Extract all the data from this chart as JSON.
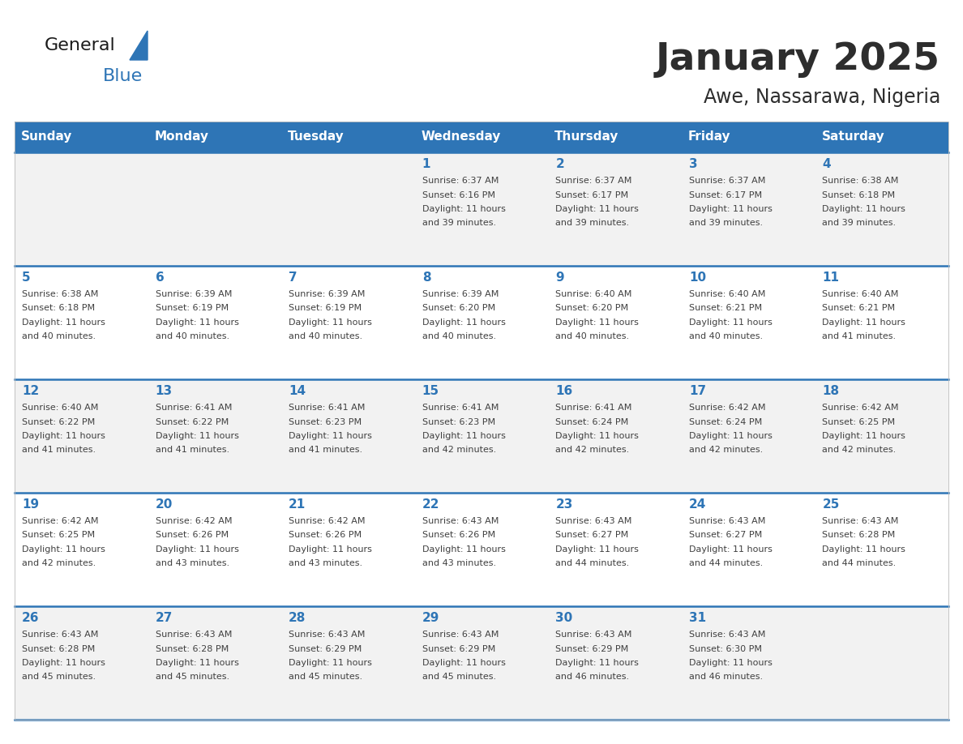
{
  "title": "January 2025",
  "subtitle": "Awe, Nassarawa, Nigeria",
  "header_bg_color": "#2E75B6",
  "header_text_color": "#FFFFFF",
  "day_names": [
    "Sunday",
    "Monday",
    "Tuesday",
    "Wednesday",
    "Thursday",
    "Friday",
    "Saturday"
  ],
  "row_bg_colors": [
    "#F2F2F2",
    "#FFFFFF",
    "#F2F2F2",
    "#FFFFFF",
    "#F2F2F2"
  ],
  "separator_color": "#2E75B6",
  "day_number_color": "#2E75B6",
  "cell_text_color": "#404040",
  "background_color": "#FFFFFF",
  "calendar": [
    [
      {
        "day": 0,
        "sunrise": "",
        "sunset": "",
        "daylight_hours": 0,
        "daylight_mins": 0
      },
      {
        "day": 0,
        "sunrise": "",
        "sunset": "",
        "daylight_hours": 0,
        "daylight_mins": 0
      },
      {
        "day": 0,
        "sunrise": "",
        "sunset": "",
        "daylight_hours": 0,
        "daylight_mins": 0
      },
      {
        "day": 1,
        "sunrise": "6:37 AM",
        "sunset": "6:16 PM",
        "daylight_hours": 11,
        "daylight_mins": 39
      },
      {
        "day": 2,
        "sunrise": "6:37 AM",
        "sunset": "6:17 PM",
        "daylight_hours": 11,
        "daylight_mins": 39
      },
      {
        "day": 3,
        "sunrise": "6:37 AM",
        "sunset": "6:17 PM",
        "daylight_hours": 11,
        "daylight_mins": 39
      },
      {
        "day": 4,
        "sunrise": "6:38 AM",
        "sunset": "6:18 PM",
        "daylight_hours": 11,
        "daylight_mins": 39
      }
    ],
    [
      {
        "day": 5,
        "sunrise": "6:38 AM",
        "sunset": "6:18 PM",
        "daylight_hours": 11,
        "daylight_mins": 40
      },
      {
        "day": 6,
        "sunrise": "6:39 AM",
        "sunset": "6:19 PM",
        "daylight_hours": 11,
        "daylight_mins": 40
      },
      {
        "day": 7,
        "sunrise": "6:39 AM",
        "sunset": "6:19 PM",
        "daylight_hours": 11,
        "daylight_mins": 40
      },
      {
        "day": 8,
        "sunrise": "6:39 AM",
        "sunset": "6:20 PM",
        "daylight_hours": 11,
        "daylight_mins": 40
      },
      {
        "day": 9,
        "sunrise": "6:40 AM",
        "sunset": "6:20 PM",
        "daylight_hours": 11,
        "daylight_mins": 40
      },
      {
        "day": 10,
        "sunrise": "6:40 AM",
        "sunset": "6:21 PM",
        "daylight_hours": 11,
        "daylight_mins": 40
      },
      {
        "day": 11,
        "sunrise": "6:40 AM",
        "sunset": "6:21 PM",
        "daylight_hours": 11,
        "daylight_mins": 41
      }
    ],
    [
      {
        "day": 12,
        "sunrise": "6:40 AM",
        "sunset": "6:22 PM",
        "daylight_hours": 11,
        "daylight_mins": 41
      },
      {
        "day": 13,
        "sunrise": "6:41 AM",
        "sunset": "6:22 PM",
        "daylight_hours": 11,
        "daylight_mins": 41
      },
      {
        "day": 14,
        "sunrise": "6:41 AM",
        "sunset": "6:23 PM",
        "daylight_hours": 11,
        "daylight_mins": 41
      },
      {
        "day": 15,
        "sunrise": "6:41 AM",
        "sunset": "6:23 PM",
        "daylight_hours": 11,
        "daylight_mins": 42
      },
      {
        "day": 16,
        "sunrise": "6:41 AM",
        "sunset": "6:24 PM",
        "daylight_hours": 11,
        "daylight_mins": 42
      },
      {
        "day": 17,
        "sunrise": "6:42 AM",
        "sunset": "6:24 PM",
        "daylight_hours": 11,
        "daylight_mins": 42
      },
      {
        "day": 18,
        "sunrise": "6:42 AM",
        "sunset": "6:25 PM",
        "daylight_hours": 11,
        "daylight_mins": 42
      }
    ],
    [
      {
        "day": 19,
        "sunrise": "6:42 AM",
        "sunset": "6:25 PM",
        "daylight_hours": 11,
        "daylight_mins": 42
      },
      {
        "day": 20,
        "sunrise": "6:42 AM",
        "sunset": "6:26 PM",
        "daylight_hours": 11,
        "daylight_mins": 43
      },
      {
        "day": 21,
        "sunrise": "6:42 AM",
        "sunset": "6:26 PM",
        "daylight_hours": 11,
        "daylight_mins": 43
      },
      {
        "day": 22,
        "sunrise": "6:43 AM",
        "sunset": "6:26 PM",
        "daylight_hours": 11,
        "daylight_mins": 43
      },
      {
        "day": 23,
        "sunrise": "6:43 AM",
        "sunset": "6:27 PM",
        "daylight_hours": 11,
        "daylight_mins": 44
      },
      {
        "day": 24,
        "sunrise": "6:43 AM",
        "sunset": "6:27 PM",
        "daylight_hours": 11,
        "daylight_mins": 44
      },
      {
        "day": 25,
        "sunrise": "6:43 AM",
        "sunset": "6:28 PM",
        "daylight_hours": 11,
        "daylight_mins": 44
      }
    ],
    [
      {
        "day": 26,
        "sunrise": "6:43 AM",
        "sunset": "6:28 PM",
        "daylight_hours": 11,
        "daylight_mins": 45
      },
      {
        "day": 27,
        "sunrise": "6:43 AM",
        "sunset": "6:28 PM",
        "daylight_hours": 11,
        "daylight_mins": 45
      },
      {
        "day": 28,
        "sunrise": "6:43 AM",
        "sunset": "6:29 PM",
        "daylight_hours": 11,
        "daylight_mins": 45
      },
      {
        "day": 29,
        "sunrise": "6:43 AM",
        "sunset": "6:29 PM",
        "daylight_hours": 11,
        "daylight_mins": 45
      },
      {
        "day": 30,
        "sunrise": "6:43 AM",
        "sunset": "6:29 PM",
        "daylight_hours": 11,
        "daylight_mins": 46
      },
      {
        "day": 31,
        "sunrise": "6:43 AM",
        "sunset": "6:30 PM",
        "daylight_hours": 11,
        "daylight_mins": 46
      },
      {
        "day": 0,
        "sunrise": "",
        "sunset": "",
        "daylight_hours": 0,
        "daylight_mins": 0
      }
    ]
  ]
}
